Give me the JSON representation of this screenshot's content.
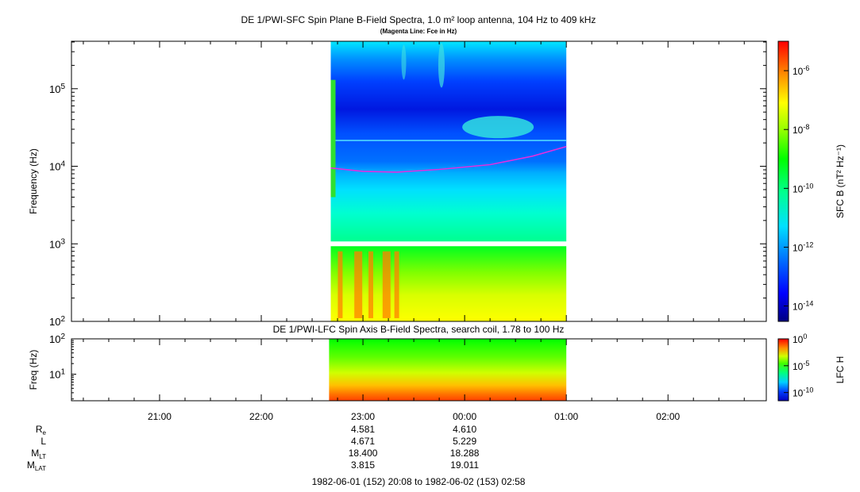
{
  "chart_data": [
    {
      "type": "heatmap",
      "title": "DE 1/PWI-SFC  Spin Plane B-Field Spectra, 1.0 m² loop antenna, 104 Hz to 409 kHz",
      "subtitle": "(Magenta Line: Fce in Hz)",
      "ylabel": "Frequency (Hz)",
      "yscale": "log",
      "ylim": [
        100,
        409000
      ],
      "y_ticks": [
        {
          "value": 100,
          "label": "10^2"
        },
        {
          "value": 1000,
          "label": "10^3"
        },
        {
          "value": 10000,
          "label": "10^4"
        },
        {
          "value": 100000,
          "label": "10^5"
        }
      ],
      "xlim": [
        "1982-06-01 20:08",
        "1982-06-02 02:58"
      ],
      "data_coverage": [
        "1982-06-01 22:41",
        "1982-06-02 01:00"
      ],
      "colorbar": {
        "label": "SFC B (nT² Hz⁻¹)",
        "scale": "log",
        "range": [
          3e-15,
          1e-05
        ],
        "ticks": [
          {
            "value": 1e-06,
            "label": "10^-6"
          },
          {
            "value": 1e-08,
            "label": "10^-8"
          },
          {
            "value": 1e-10,
            "label": "10^-10"
          },
          {
            "value": 1e-12,
            "label": "10^-12"
          },
          {
            "value": 1e-14,
            "label": "10^-14"
          }
        ],
        "colors": [
          "#000080",
          "#0000ff",
          "#0080ff",
          "#00ffff",
          "#00ff80",
          "#00ff00",
          "#80ff00",
          "#ffff00",
          "#ff8000",
          "#ff0000"
        ]
      },
      "fce_line": {
        "color": "#e030e0",
        "points": [
          {
            "t": "1982-06-01 22:41",
            "f": 9500
          },
          {
            "t": "1982-06-01 23:00",
            "f": 8600
          },
          {
            "t": "1982-06-01 23:20",
            "f": 8400
          },
          {
            "t": "1982-06-01 23:45",
            "f": 9100
          },
          {
            "t": "1982-06-02 00:15",
            "f": 10500
          },
          {
            "t": "1982-06-02 00:40",
            "f": 13500
          },
          {
            "t": "1982-06-02 01:00",
            "f": 18000
          }
        ]
      }
    },
    {
      "type": "heatmap",
      "title": "DE 1/PWI-LFC  Spin Axis B-Field Spectra, search coil, 1.78 to 100 Hz",
      "ylabel": "Freq (Hz)",
      "yscale": "log",
      "ylim": [
        1.78,
        100
      ],
      "y_ticks": [
        {
          "value": 10,
          "label": "10^1"
        },
        {
          "value": 100,
          "label": "10^2"
        }
      ],
      "xlim": [
        "1982-06-01 20:08",
        "1982-06-02 02:58"
      ],
      "data_coverage": [
        "1982-06-01 22:40",
        "1982-06-02 01:00"
      ],
      "colorbar": {
        "label": "LFC H",
        "scale": "log",
        "range": [
          3e-12,
          1
        ],
        "ticks": [
          {
            "value": 1,
            "label": "10^0"
          },
          {
            "value": 1e-05,
            "label": "10^-5"
          },
          {
            "value": 1e-10,
            "label": "10^-10"
          }
        ]
      }
    }
  ],
  "time_axis": {
    "tick_labels": [
      "21:00",
      "22:00",
      "23:00",
      "00:00",
      "01:00",
      "02:00"
    ],
    "range_label": "1982-06-01 (152) 20:08 to 1982-06-02 (153) 02:58"
  },
  "ephemeris": {
    "rows": [
      {
        "label": "R",
        "sub": "e",
        "values": [
          "4.581",
          "4.610"
        ]
      },
      {
        "label": "L",
        "sub": "",
        "values": [
          "4.671",
          "5.229"
        ]
      },
      {
        "label": "M",
        "sub": "LT",
        "values": [
          "18.400",
          "18.288"
        ]
      },
      {
        "label": "M",
        "sub": "LAT",
        "values": [
          "3.815",
          "19.011"
        ]
      }
    ],
    "value_times": [
      "23:00",
      "00:00"
    ]
  }
}
